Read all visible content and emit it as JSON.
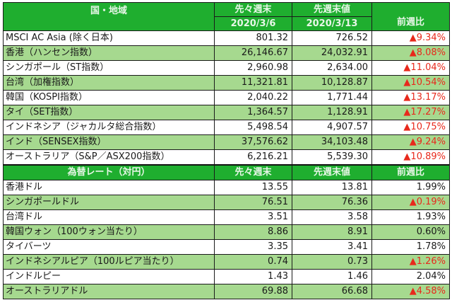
{
  "table": {
    "header": {
      "region_label": "国・地域",
      "col_prev2_line1": "先々週末",
      "col_prev2_line2": "2020/3/6",
      "col_prev1_line1": "先週末値",
      "col_prev1_line2": "2020/3/13",
      "col_change": "前週比"
    },
    "indices": [
      {
        "name": "MSCI AC Asia (除く日本)",
        "prev2": "801.32",
        "prev1": "726.52",
        "change": "▲9.34%",
        "negative": true
      },
      {
        "name": "香港（ハンセン指数）",
        "prev2": "26,146.67",
        "prev1": "24,032.91",
        "change": "▲8.08%",
        "negative": true
      },
      {
        "name": "シンガポール（ST指数）",
        "prev2": "2,960.98",
        "prev1": "2,634.00",
        "change": "▲11.04%",
        "negative": true
      },
      {
        "name": "台湾（加権指数）",
        "prev2": "11,321.81",
        "prev1": "10,128.87",
        "change": "▲10.54%",
        "negative": true
      },
      {
        "name": "韓国（KOSPI指数）",
        "prev2": "2,040.22",
        "prev1": "1,771.44",
        "change": "▲13.17%",
        "negative": true
      },
      {
        "name": "タイ（SET指数）",
        "prev2": "1,364.57",
        "prev1": "1,128.91",
        "change": "▲17.27%",
        "negative": true
      },
      {
        "name": "インドネシア（ジャカルタ総合指数）",
        "prev2": "5,498.54",
        "prev1": "4,907.57",
        "change": "▲10.75%",
        "negative": true
      },
      {
        "name": "インド（SENSEX指数）",
        "prev2": "37,576.62",
        "prev1": "34,103.48",
        "change": "▲9.24%",
        "negative": true
      },
      {
        "name": "オーストラリア（S&P／ASX200指数）",
        "prev2": "6,216.21",
        "prev1": "5,539.30",
        "change": "▲10.89%",
        "negative": true
      }
    ],
    "fx_header": {
      "label": "為替レート（対円）",
      "col_prev2": "先々週末",
      "col_prev1": "先週末値",
      "col_change": "前週比"
    },
    "fx": [
      {
        "name": "香港ドル",
        "prev2": "13.55",
        "prev1": "13.81",
        "change": "1.99%",
        "negative": false
      },
      {
        "name": "シンガポールドル",
        "prev2": "76.51",
        "prev1": "76.36",
        "change": "▲0.19%",
        "negative": true
      },
      {
        "name": "台湾ドル",
        "prev2": "3.51",
        "prev1": "3.58",
        "change": "1.93%",
        "negative": false
      },
      {
        "name": "韓国ウォン（100ウォン当たり）",
        "prev2": "8.86",
        "prev1": "8.91",
        "change": "0.60%",
        "negative": false
      },
      {
        "name": "タイバーツ",
        "prev2": "3.35",
        "prev1": "3.41",
        "change": "1.78%",
        "negative": false
      },
      {
        "name": "インドネシアルピア（100ルピア当たり）",
        "prev2": "0.74",
        "prev1": "0.73",
        "change": "▲1.26%",
        "negative": true
      },
      {
        "name": "インドルピー",
        "prev2": "1.43",
        "prev1": "1.46",
        "change": "2.04%",
        "negative": false
      },
      {
        "name": "オーストラリアドル",
        "prev2": "69.88",
        "prev1": "66.68",
        "change": "▲4.58%",
        "negative": true
      }
    ]
  },
  "colors": {
    "header_green": "#1fae2f",
    "row_alt_green": "#a6d98f",
    "negative_red": "#e8291c"
  }
}
